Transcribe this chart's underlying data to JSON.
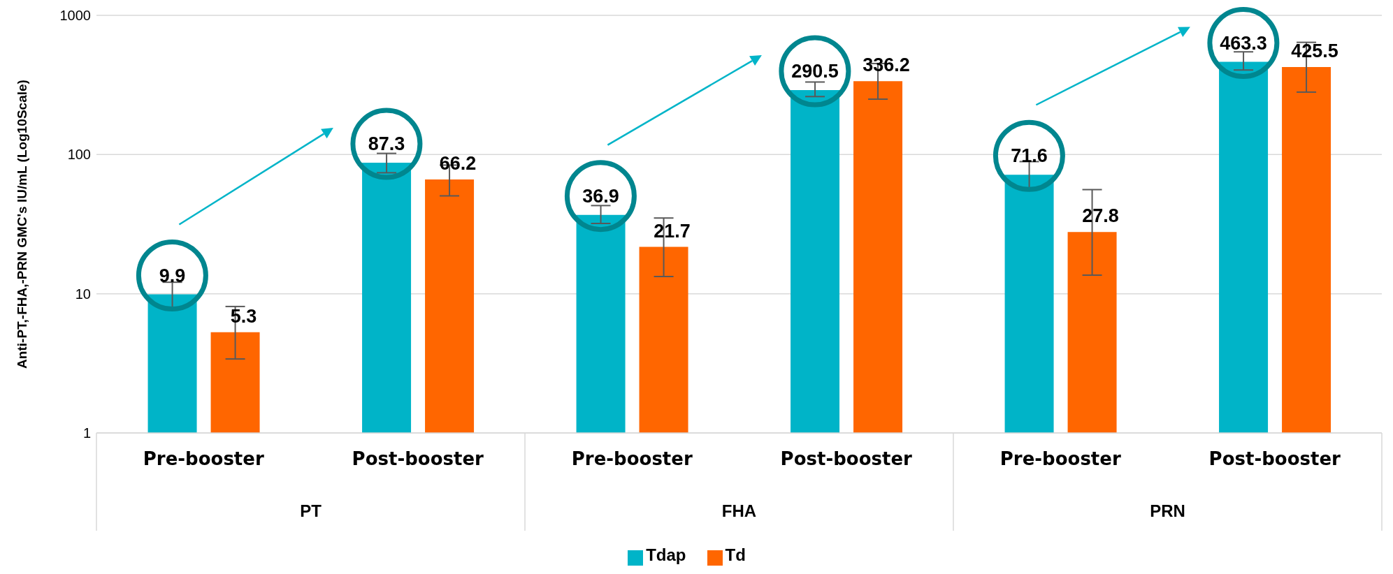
{
  "chart_data": {
    "type": "bar",
    "ylabel": "Anti-PT,-FHA,-PRN GMC's IU/mL    (Log10Scale)",
    "categories": [
      "Pre-booster",
      "Post-booster",
      "Pre-booster",
      "Post-booster",
      "Pre-booster",
      "Post-booster"
    ],
    "annotations": [
      "PT",
      "FHA",
      "PRN"
    ],
    "series": [
      {
        "name": "Tdap",
        "color": "#00b4c8",
        "values": [
          9.9,
          87.3,
          36.9,
          290.5,
          71.6,
          463.3
        ],
        "errors": [
          [
            8.0,
            12.1
          ],
          [
            74,
            102
          ],
          [
            32,
            43
          ],
          [
            261,
            332
          ],
          [
            56,
            89
          ],
          [
            405,
            547
          ]
        ]
      },
      {
        "name": "Td",
        "color": "#ff6600",
        "values": [
          5.3,
          66.2,
          21.7,
          336.2,
          27.8,
          425.5
        ],
        "errors": [
          [
            3.4,
            8.1
          ],
          [
            50.5,
            84
          ],
          [
            13.3,
            35
          ],
          [
            250,
            451
          ],
          [
            13.6,
            56
          ],
          [
            281,
            640
          ]
        ]
      }
    ],
    "log": true,
    "ylim": [
      1,
      1000
    ],
    "yticks": [
      1,
      10,
      100,
      1000
    ],
    "grid": "y",
    "legend": "bottom",
    "data_labels": true
  }
}
